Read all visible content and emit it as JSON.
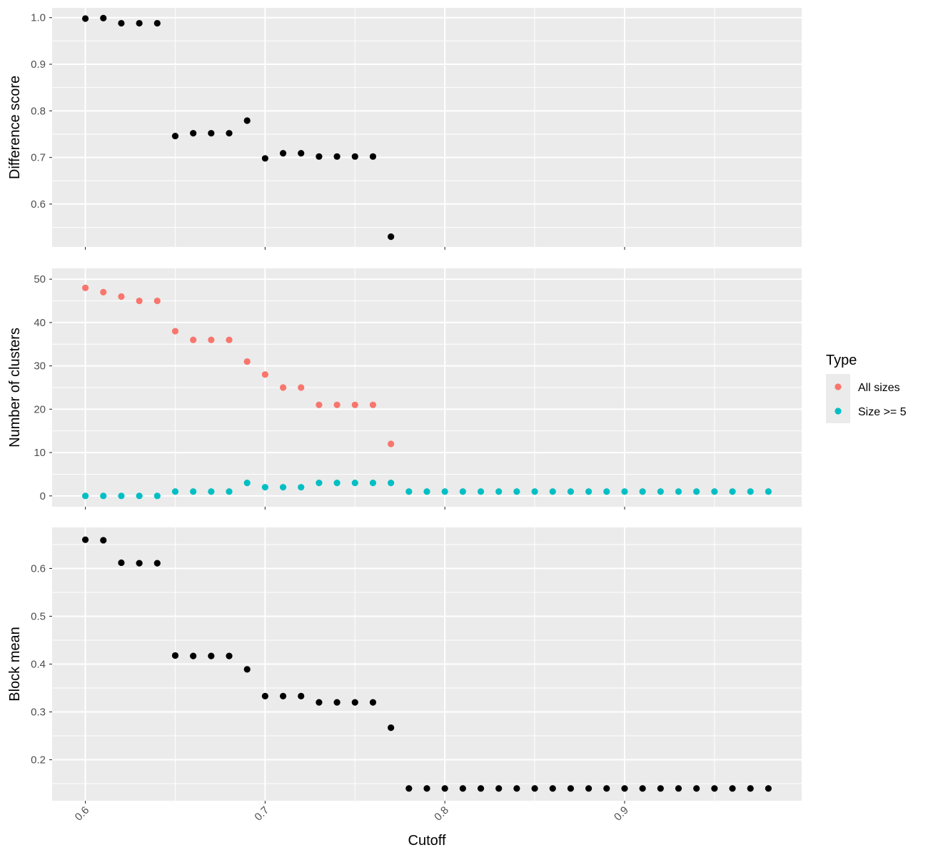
{
  "colors": {
    "panel_background": "#ebebeb",
    "grid_major": "#ffffff",
    "points_black": "#000000",
    "all_sizes": "#f8766d",
    "size_ge_5": "#00bfc4"
  },
  "legend": {
    "title": "Type",
    "items": [
      {
        "label": "All sizes",
        "color": "#f8766d"
      },
      {
        "label": "Size >= 5",
        "color": "#00bfc4"
      }
    ]
  },
  "chart_data": [
    {
      "type": "scatter",
      "panel": "top",
      "ylabel": "Difference score",
      "xlim": [
        0.5815,
        0.9985
      ],
      "ylim": [
        0.508,
        1.021
      ],
      "yticks": [
        0.6,
        0.7,
        0.8,
        0.9,
        1.0
      ],
      "ytick_labels": [
        "0.6",
        "0.7",
        "0.8",
        "0.9",
        "1.0"
      ],
      "grid": true,
      "series": [
        {
          "color": "#000000",
          "x": [
            0.6,
            0.61,
            0.62,
            0.63,
            0.64,
            0.65,
            0.66,
            0.67,
            0.68,
            0.69,
            0.7,
            0.71,
            0.72,
            0.73,
            0.74,
            0.75,
            0.76,
            0.77
          ],
          "y": [
            0.998,
            0.999,
            0.988,
            0.988,
            0.988,
            0.746,
            0.752,
            0.752,
            0.752,
            0.779,
            0.698,
            0.709,
            0.709,
            0.702,
            0.702,
            0.702,
            0.702,
            0.53
          ]
        }
      ]
    },
    {
      "type": "scatter",
      "panel": "middle",
      "ylabel": "Number of clusters",
      "xlim": [
        0.5815,
        0.9985
      ],
      "ylim": [
        -2.5,
        52.5
      ],
      "yticks": [
        0,
        10,
        20,
        30,
        40,
        50
      ],
      "ytick_labels": [
        "0",
        "10",
        "20",
        "30",
        "40",
        "50"
      ],
      "grid": true,
      "series": [
        {
          "name": "All sizes",
          "color": "#f8766d",
          "x": [
            0.6,
            0.61,
            0.62,
            0.63,
            0.64,
            0.65,
            0.66,
            0.67,
            0.68,
            0.69,
            0.7,
            0.71,
            0.72,
            0.73,
            0.74,
            0.75,
            0.76,
            0.77
          ],
          "y": [
            48,
            47,
            46,
            45,
            45,
            38,
            36,
            36,
            36,
            31,
            28,
            25,
            25,
            21,
            21,
            21,
            21,
            12
          ]
        },
        {
          "name": "Size >= 5",
          "color": "#00bfc4",
          "x": [
            0.6,
            0.61,
            0.62,
            0.63,
            0.64,
            0.65,
            0.66,
            0.67,
            0.68,
            0.69,
            0.7,
            0.71,
            0.72,
            0.73,
            0.74,
            0.75,
            0.76,
            0.77,
            0.78,
            0.79,
            0.8,
            0.81,
            0.82,
            0.83,
            0.84,
            0.85,
            0.86,
            0.87,
            0.88,
            0.89,
            0.9,
            0.91,
            0.92,
            0.93,
            0.94,
            0.95,
            0.96,
            0.97,
            0.98
          ],
          "y": [
            0,
            0,
            0,
            0,
            0,
            1,
            1,
            1,
            1,
            3,
            2,
            2,
            2,
            3,
            3,
            3,
            3,
            3,
            1,
            1,
            1,
            1,
            1,
            1,
            1,
            1,
            1,
            1,
            1,
            1,
            1,
            1,
            1,
            1,
            1,
            1,
            1,
            1,
            1
          ]
        }
      ]
    },
    {
      "type": "scatter",
      "panel": "bottom",
      "ylabel": "Block mean",
      "xlabel": "Cutoff",
      "xlim": [
        0.5815,
        0.9985
      ],
      "ylim": [
        0.1142,
        0.6858
      ],
      "yticks": [
        0.2,
        0.3,
        0.4,
        0.5,
        0.6
      ],
      "ytick_labels": [
        "0.2",
        "0.3",
        "0.4",
        "0.5",
        "0.6"
      ],
      "xticks": [
        0.6,
        0.7,
        0.8,
        0.9
      ],
      "xtick_labels": [
        "0.6",
        "0.7",
        "0.8",
        "0.9"
      ],
      "grid": true,
      "series": [
        {
          "color": "#000000",
          "x": [
            0.6,
            0.61,
            0.62,
            0.63,
            0.64,
            0.65,
            0.66,
            0.67,
            0.68,
            0.69,
            0.7,
            0.71,
            0.72,
            0.73,
            0.74,
            0.75,
            0.76,
            0.77,
            0.78,
            0.79,
            0.8,
            0.81,
            0.82,
            0.83,
            0.84,
            0.85,
            0.86,
            0.87,
            0.88,
            0.89,
            0.9,
            0.91,
            0.92,
            0.93,
            0.94,
            0.95,
            0.96,
            0.97,
            0.98
          ],
          "y": [
            0.66,
            0.659,
            0.612,
            0.611,
            0.611,
            0.418,
            0.417,
            0.417,
            0.417,
            0.389,
            0.333,
            0.333,
            0.333,
            0.32,
            0.32,
            0.32,
            0.32,
            0.267,
            0.14,
            0.14,
            0.14,
            0.14,
            0.14,
            0.14,
            0.14,
            0.14,
            0.14,
            0.14,
            0.14,
            0.14,
            0.14,
            0.14,
            0.14,
            0.14,
            0.14,
            0.14,
            0.14,
            0.14,
            0.14
          ]
        }
      ]
    }
  ]
}
